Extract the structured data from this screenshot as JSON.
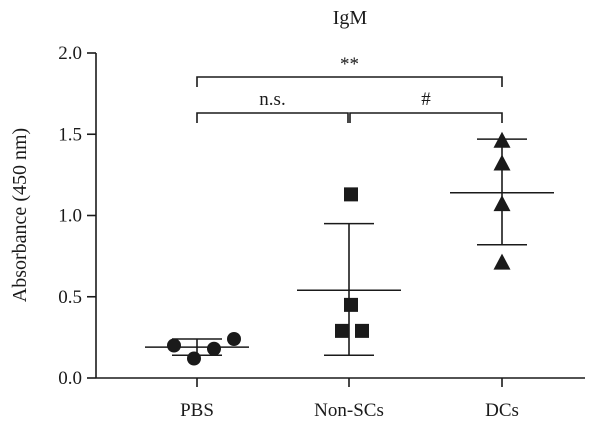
{
  "chart_data": {
    "type": "scatter",
    "title": "IgM",
    "xlabel": "",
    "ylabel": "Absorbance (450 nm)",
    "ylim": [
      0,
      2.0
    ],
    "yticks": [
      "0.0",
      "0.5",
      "1.0",
      "1.5",
      "2.0"
    ],
    "categories": [
      "PBS",
      "Non-SCs",
      "DCs"
    ],
    "series": [
      {
        "category": "PBS",
        "marker": "circle",
        "points": [
          0.2,
          0.12,
          0.18,
          0.24
        ],
        "mean": 0.19,
        "sd_low": 0.14,
        "sd_high": 0.24
      },
      {
        "category": "Non-SCs",
        "marker": "square",
        "points": [
          1.13,
          0.45,
          0.29,
          0.29
        ],
        "mean": 0.54,
        "sd_low": 0.14,
        "sd_high": 0.95
      },
      {
        "category": "DCs",
        "marker": "triangle",
        "points": [
          1.46,
          1.32,
          1.07,
          0.71
        ],
        "mean": 1.14,
        "sd_low": 0.82,
        "sd_high": 1.47
      }
    ],
    "significance": [
      {
        "from": "PBS",
        "to": "Non-SCs",
        "label": "n.s."
      },
      {
        "from": "Non-SCs",
        "to": "DCs",
        "label": "#"
      },
      {
        "from": "PBS",
        "to": "DCs",
        "label": "**"
      }
    ],
    "grid": false
  }
}
